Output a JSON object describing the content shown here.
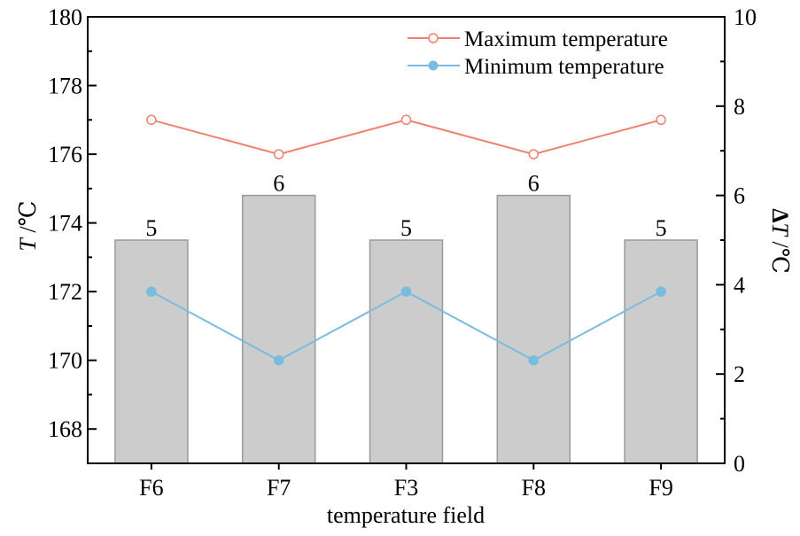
{
  "chart_data": {
    "type": "bar+line",
    "categories": [
      "F6",
      "F7",
      "F3",
      "F8",
      "F9"
    ],
    "xlabel": "temperature field",
    "ylabel_left": {
      "italic": "T",
      "unit": " /℃"
    },
    "ylabel_right": {
      "prefix": "Δ",
      "italic": "T",
      "unit": " /℃"
    },
    "left_axis": {
      "ylim": [
        167,
        180
      ],
      "ticks": [
        168,
        170,
        172,
        174,
        176,
        178,
        180
      ],
      "minor_step": 1
    },
    "right_axis": {
      "ylim": [
        0,
        10
      ],
      "ticks": [
        0,
        2,
        4,
        6,
        8,
        10
      ],
      "minor_step": 1
    },
    "bars": {
      "axis": "right",
      "name": "ΔT",
      "values": [
        5,
        6,
        5,
        6,
        5
      ],
      "labels": [
        "5",
        "6",
        "5",
        "6",
        "5"
      ],
      "fill": "#cccccc",
      "stroke": "#999999"
    },
    "series": [
      {
        "name": "Maximum temperature",
        "axis": "left",
        "values": [
          177,
          176,
          177,
          176,
          177
        ],
        "color": "#f08070",
        "marker": "hollow-circle"
      },
      {
        "name": "Minimum temperature",
        "axis": "left",
        "values": [
          172,
          170,
          172,
          170,
          172
        ],
        "color": "#7bbbe0",
        "marker": "filled-circle"
      }
    ],
    "legend_position": "top-right",
    "grid": false
  }
}
